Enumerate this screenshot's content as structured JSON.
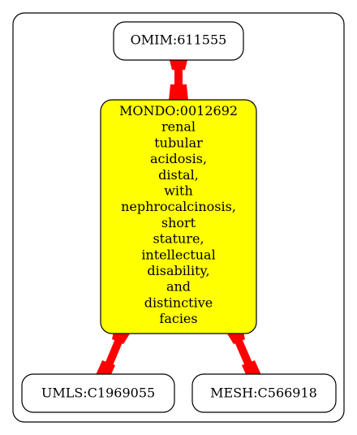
{
  "colors": {
    "edge": "#ff0000",
    "focus_fill": "#ffff00",
    "node_fill": "#ffffff",
    "stroke": "#000000",
    "background": "#ffffff"
  },
  "nodes": {
    "omim": {
      "label": "OMIM:611555"
    },
    "mondo": {
      "id_label": "MONDO:0012692",
      "name_lines": [
        "renal",
        "tubular",
        "acidosis,",
        "distal,",
        "with",
        "nephrocalcinosis,",
        "short",
        "stature,",
        "intellectual",
        "disability,",
        "and",
        "distinctive",
        "facies"
      ]
    },
    "umls": {
      "label": "UMLS:C1969055"
    },
    "mesh": {
      "label": "MESH:C566918"
    }
  }
}
